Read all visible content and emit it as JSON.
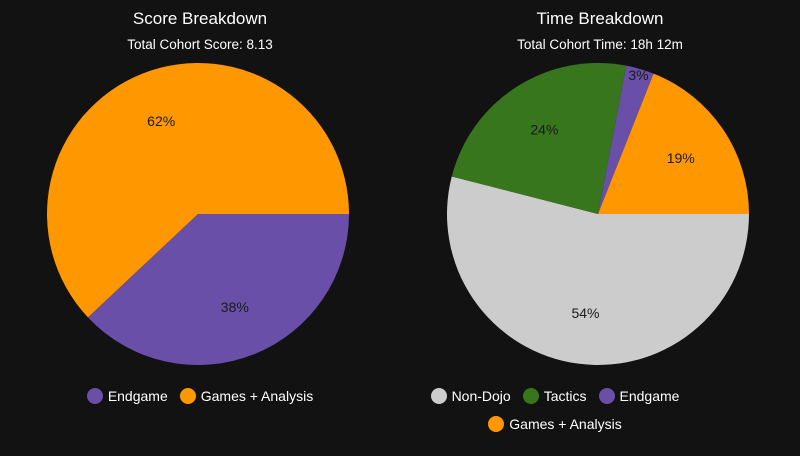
{
  "chart_data": [
    {
      "type": "pie",
      "title": "Score Breakdown",
      "subtitle": "Total Cohort Score: 8.13",
      "slices": [
        {
          "name": "Endgame",
          "value": 38,
          "label": "38%",
          "color": "#6a4fa9"
        },
        {
          "name": "Games + Analysis",
          "value": 62,
          "label": "62%",
          "color": "#ff9800"
        }
      ],
      "legend": {
        "position": "bottom",
        "entries": [
          "Endgame",
          "Games + Analysis"
        ]
      }
    },
    {
      "type": "pie",
      "title": "Time Breakdown",
      "subtitle": "Total Cohort Time: 18h 12m",
      "slices": [
        {
          "name": "Non-Dojo",
          "value": 54,
          "label": "54%",
          "color": "#cccccc"
        },
        {
          "name": "Tactics",
          "value": 24,
          "label": "24%",
          "color": "#38761d"
        },
        {
          "name": "Endgame",
          "value": 3,
          "label": "3%",
          "color": "#6a4fa9"
        },
        {
          "name": "Games + Analysis",
          "value": 19,
          "label": "19%",
          "color": "#ff9800"
        }
      ],
      "legend": {
        "position": "bottom",
        "entries": [
          "Non-Dojo",
          "Tactics",
          "Endgame",
          "Games + Analysis"
        ]
      }
    }
  ]
}
